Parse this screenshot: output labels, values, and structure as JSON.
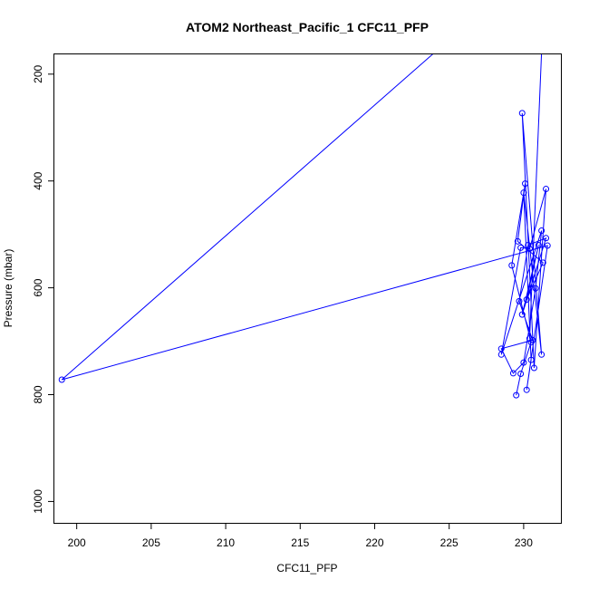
{
  "chart_data": {
    "type": "line",
    "title": "ATOM2 Northeast_Pacific_1 CFC11_PFP",
    "xlabel": "CFC11_PFP",
    "ylabel": "Pressure (mbar)",
    "xlim": [
      198.5,
      232.5
    ],
    "ylim": [
      1040,
      163
    ],
    "y_inverted": true,
    "xticks": [
      {
        "value": 200,
        "label": "200"
      },
      {
        "value": 205,
        "label": "205"
      },
      {
        "value": 210,
        "label": "210"
      },
      {
        "value": 215,
        "label": "215"
      },
      {
        "value": 220,
        "label": "220"
      },
      {
        "value": 225,
        "label": "225"
      },
      {
        "value": 230,
        "label": "230"
      }
    ],
    "yticks": [
      {
        "value": 200,
        "label": "200"
      },
      {
        "value": 400,
        "label": "400"
      },
      {
        "value": 600,
        "label": "600"
      },
      {
        "value": 800,
        "label": "800"
      },
      {
        "value": 1000,
        "label": "1000"
      }
    ],
    "color": "#0000ff",
    "series": [
      {
        "x": [
          229.5,
          229.8,
          230.5,
          229.2,
          230.1,
          229.6,
          231.3,
          230.2,
          231.0,
          229.9,
          231.5,
          230.3,
          229.7,
          230.6,
          228.5,
          229.3,
          230.0,
          230.8,
          231.2,
          228.5,
          229.8,
          230.4,
          231.5,
          230.7,
          229.9,
          231.2,
          230.0,
          230.5,
          230.2,
          231.6,
          199.0,
          224.0,
          231.2,
          230.4
        ],
        "y": [
          801,
          761,
          702,
          558,
          405,
          513,
          553,
          622,
          520,
          650,
          507,
          520,
          625,
          698,
          714,
          760,
          740,
          601,
          493,
          725,
          525,
          527,
          415,
          750,
          273,
          725,
          422,
          735,
          791,
          521,
          772,
          160,
          160,
          695
        ],
        "plot_markers": [
          true,
          true,
          true,
          true,
          true,
          true,
          true,
          true,
          true,
          true,
          true,
          true,
          true,
          true,
          true,
          true,
          true,
          true,
          true,
          true,
          true,
          true,
          true,
          true,
          true,
          true,
          true,
          true,
          true,
          true,
          true,
          false,
          false,
          true
        ]
      }
    ]
  }
}
